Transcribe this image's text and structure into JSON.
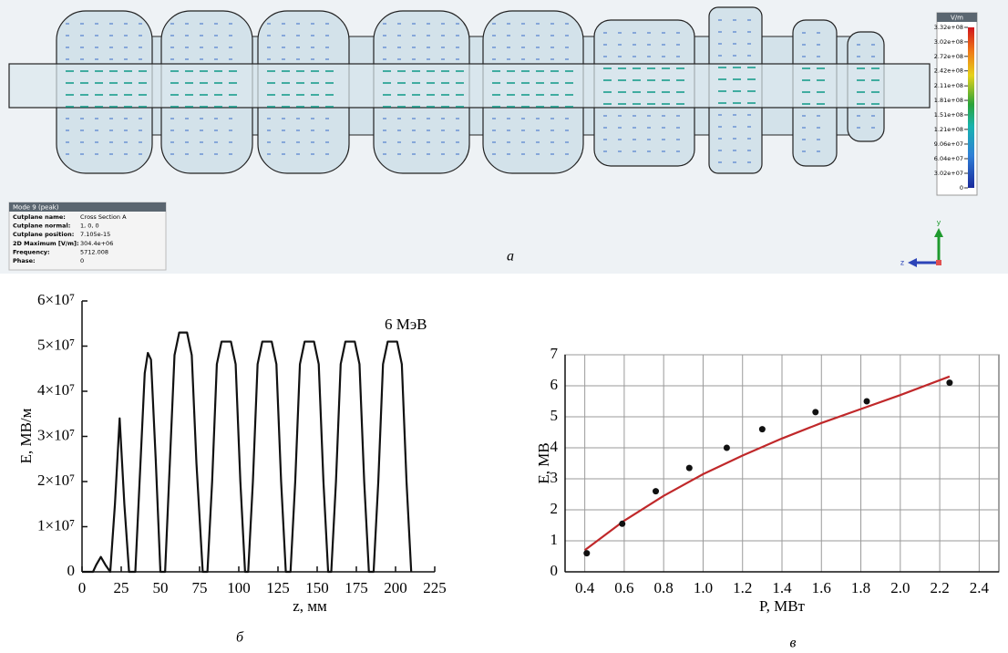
{
  "panel_a": {
    "caption": "а",
    "colorbar": {
      "unit": "V/m",
      "ticks": [
        {
          "value": 332000000,
          "label": "3.32e+08"
        },
        {
          "value": 302000000,
          "label": "3.02e+08"
        },
        {
          "value": 272000000,
          "label": "2.72e+08"
        },
        {
          "value": 242000000,
          "label": "2.42e+08"
        },
        {
          "value": 211000000,
          "label": "2.11e+08"
        },
        {
          "value": 181000000,
          "label": "1.81e+08"
        },
        {
          "value": 151000000,
          "label": "1.51e+08"
        },
        {
          "value": 121000000,
          "label": "1.21e+08"
        },
        {
          "value": 90600000,
          "label": "9.06e+07"
        },
        {
          "value": 60400000,
          "label": "6.04e+07"
        },
        {
          "value": 30200000,
          "label": "3.02e+07"
        },
        0
      ]
    },
    "info": {
      "title": "Mode 9 (peak)",
      "rows": [
        [
          "Cutplane name:",
          "Cross Section A"
        ],
        [
          "Cutplane normal:",
          "1, 0, 0"
        ],
        [
          "Cutplane position:",
          "7.105e-15"
        ],
        [
          "2D Maximum [V/m]:",
          "304.4e+06"
        ],
        [
          "Frequency:",
          "5712.008"
        ],
        [
          "Phase:",
          "0"
        ]
      ]
    },
    "axes": {
      "y": "y",
      "z": "z"
    }
  },
  "chart_data": [
    {
      "type": "line",
      "caption": "б",
      "annotation": "6 МэВ",
      "x_label": "z, мм",
      "y_label": "E, МВ/м",
      "color": "#111111",
      "grid": false,
      "xlim": [
        0,
        225
      ],
      "xticks": [
        0,
        25,
        50,
        75,
        100,
        125,
        150,
        175,
        200,
        225
      ],
      "ylim": [
        0,
        60000000
      ],
      "yticks": [
        0,
        {
          "value": 10000000,
          "label": "1×10⁷"
        },
        {
          "value": 20000000,
          "label": "2×10⁷"
        },
        {
          "value": 30000000,
          "label": "3×10⁷"
        },
        {
          "value": 40000000,
          "label": "4×10⁷"
        },
        {
          "value": 50000000,
          "label": "5×10⁷"
        },
        {
          "value": 60000000,
          "label": "6×10⁷"
        }
      ],
      "x": [
        0,
        7,
        9,
        12,
        15,
        18,
        21,
        24,
        27,
        30,
        34,
        37,
        40,
        42,
        44,
        47,
        50,
        53,
        56,
        59,
        62,
        67,
        70,
        73,
        77,
        80,
        83,
        86,
        89,
        95,
        98,
        101,
        104,
        106,
        109,
        112,
        115,
        121,
        124,
        127,
        130,
        133,
        136,
        139,
        142,
        148,
        151,
        154,
        157,
        159,
        162,
        165,
        168,
        174,
        177,
        180,
        183,
        186,
        189,
        192,
        195,
        201,
        204,
        207,
        210
      ],
      "values": [
        0,
        0,
        1500000,
        3300000,
        1500000,
        0,
        15000000,
        34000000,
        15000000,
        0,
        0,
        22000000,
        44000000,
        48500000,
        47000000,
        25000000,
        0,
        0,
        24000000,
        48000000,
        53000000,
        53000000,
        48000000,
        24000000,
        0,
        0,
        20000000,
        46000000,
        51000000,
        51000000,
        46000000,
        20000000,
        0,
        0,
        20000000,
        46000000,
        51000000,
        51000000,
        46000000,
        20000000,
        0,
        0,
        20000000,
        46000000,
        51000000,
        51000000,
        46000000,
        20000000,
        0,
        0,
        20000000,
        46000000,
        51000000,
        51000000,
        46000000,
        20000000,
        0,
        0,
        20000000,
        46000000,
        51000000,
        51000000,
        46000000,
        20000000,
        0
      ]
    },
    {
      "type": "scatter",
      "caption": "в",
      "x_label": "P, МВт",
      "y_label": "E, МВ",
      "grid": true,
      "xlim": [
        0.3,
        2.5
      ],
      "xticks": [
        0.4,
        0.6,
        0.8,
        {
          "value": 1,
          "label": "1.0"
        },
        1.2,
        1.4,
        1.6,
        1.8,
        {
          "value": 2,
          "label": "2.0"
        },
        2.2,
        2.4
      ],
      "ylim": [
        0,
        7
      ],
      "yticks": [
        0,
        1,
        2,
        3,
        4,
        5,
        6,
        7
      ],
      "series": [
        {
          "type": "line",
          "color": "#c0282a",
          "x": [
            0.4,
            0.6,
            0.8,
            1.0,
            1.2,
            1.4,
            1.6,
            1.8,
            2.0,
            2.25
          ],
          "values": [
            0.7,
            1.65,
            2.45,
            3.15,
            3.75,
            4.3,
            4.8,
            5.25,
            5.7,
            6.3
          ]
        },
        {
          "type": "scatter",
          "color": "#111111",
          "x": [
            0.41,
            0.59,
            0.76,
            0.93,
            1.12,
            1.3,
            1.57,
            1.83,
            2.25
          ],
          "values": [
            0.6,
            1.55,
            2.6,
            3.35,
            4.0,
            4.6,
            5.15,
            5.5,
            6.1
          ]
        }
      ]
    }
  ]
}
